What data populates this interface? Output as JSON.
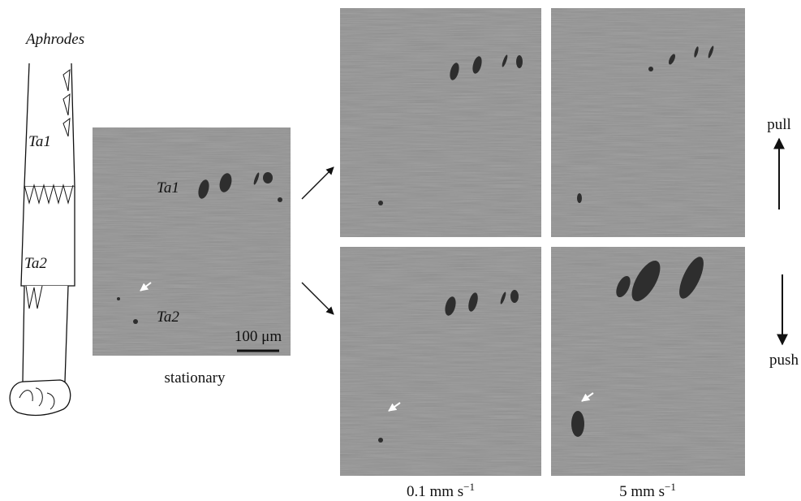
{
  "figure": {
    "species": "Aphrodes",
    "leg_labels": [
      "Ta1",
      "Ta2"
    ],
    "stationary": {
      "labels": [
        "Ta1",
        "Ta2"
      ],
      "scale_bar": "100 μm",
      "caption": "stationary"
    },
    "directions": [
      "pull",
      "push"
    ],
    "speeds": [
      {
        "text": "0.1 mm s",
        "sup": "−1"
      },
      {
        "text": "5 mm s",
        "sup": "−1"
      }
    ]
  }
}
